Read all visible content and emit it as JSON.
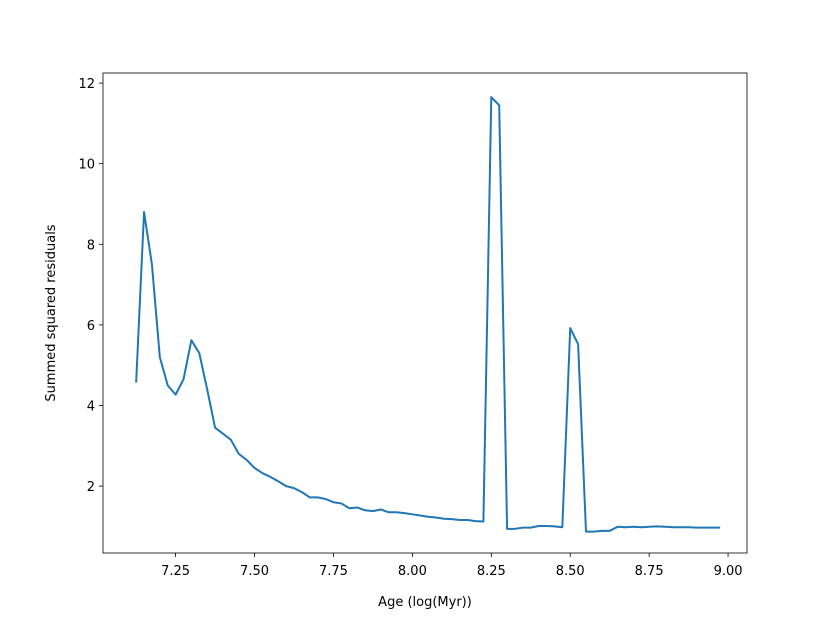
{
  "chart_data": {
    "type": "line",
    "xlabel": "Age (log(Myr))",
    "ylabel": "Summed squared residuals",
    "color": "#1f77b4",
    "x": [
      7.125,
      7.15,
      7.175,
      7.2,
      7.225,
      7.25,
      7.275,
      7.3,
      7.325,
      7.35,
      7.375,
      7.4,
      7.425,
      7.45,
      7.475,
      7.5,
      7.525,
      7.55,
      7.575,
      7.6,
      7.625,
      7.65,
      7.675,
      7.7,
      7.725,
      7.75,
      7.775,
      7.8,
      7.825,
      7.85,
      7.875,
      7.9,
      7.925,
      7.95,
      7.975,
      8.0,
      8.025,
      8.05,
      8.075,
      8.1,
      8.125,
      8.15,
      8.175,
      8.2,
      8.225,
      8.25,
      8.275,
      8.3,
      8.325,
      8.35,
      8.375,
      8.4,
      8.425,
      8.45,
      8.475,
      8.5,
      8.525,
      8.55,
      8.575,
      8.6,
      8.625,
      8.65,
      8.675,
      8.7,
      8.725,
      8.75,
      8.775,
      8.8,
      8.825,
      8.85,
      8.875,
      8.9,
      8.925,
      8.95,
      8.975
    ],
    "values": [
      4.57,
      8.8,
      7.5,
      5.2,
      4.5,
      4.27,
      4.65,
      5.62,
      5.3,
      4.4,
      3.45,
      3.3,
      3.15,
      2.8,
      2.65,
      2.45,
      2.32,
      2.23,
      2.12,
      2.0,
      1.95,
      1.85,
      1.72,
      1.72,
      1.68,
      1.6,
      1.57,
      1.45,
      1.47,
      1.4,
      1.38,
      1.42,
      1.35,
      1.35,
      1.33,
      1.3,
      1.27,
      1.24,
      1.22,
      1.19,
      1.18,
      1.16,
      1.16,
      1.13,
      1.12,
      11.65,
      11.45,
      0.94,
      0.94,
      0.97,
      0.97,
      1.01,
      1.01,
      1.0,
      0.98,
      5.92,
      5.52,
      0.87,
      0.87,
      0.89,
      0.89,
      0.99,
      0.98,
      0.99,
      0.98,
      0.99,
      1.0,
      0.99,
      0.98,
      0.98,
      0.98,
      0.97,
      0.97,
      0.97,
      0.97
    ],
    "xlim": [
      7.02,
      9.06
    ],
    "ylim": [
      0.34,
      12.25
    ],
    "xticks": [
      7.25,
      {
        "value": 7.5,
        "label": "7.50"
      },
      7.75,
      {
        "value": 8.0,
        "label": "8.00"
      },
      8.25,
      {
        "value": 8.5,
        "label": "8.50"
      },
      8.75,
      {
        "value": 9.0,
        "label": "9.00"
      }
    ],
    "yticks": [
      2,
      4,
      6,
      8,
      10,
      12
    ]
  }
}
